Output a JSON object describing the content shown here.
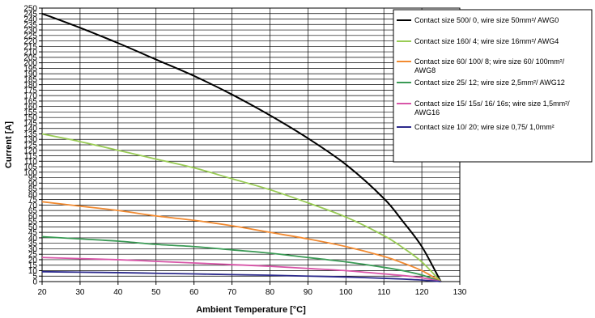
{
  "chart_data": {
    "type": "line",
    "xlabel": "Ambient Temperature [°C]",
    "ylabel": "Current [A]",
    "xlim": [
      20,
      130
    ],
    "ylim": [
      0,
      250
    ],
    "xticks": [
      20,
      30,
      40,
      50,
      60,
      70,
      80,
      90,
      100,
      110,
      120,
      130
    ],
    "yticks": [
      0,
      5,
      10,
      15,
      20,
      25,
      30,
      35,
      40,
      45,
      50,
      55,
      60,
      65,
      70,
      75,
      80,
      85,
      90,
      95,
      100,
      105,
      110,
      115,
      120,
      125,
      130,
      135,
      140,
      145,
      150,
      155,
      160,
      165,
      170,
      175,
      180,
      185,
      190,
      195,
      200,
      205,
      210,
      215,
      220,
      225,
      230,
      235,
      240,
      245,
      250
    ],
    "grid": true,
    "legend_position": "top-right",
    "series": [
      {
        "name": "Contact size 500/ 0, wire size 50mm²/ AWG0",
        "color": "#000000",
        "lines": [
          "Contact size 500/ 0, wire size 50mm²/ AWG0"
        ],
        "x": [
          20,
          30,
          40,
          50,
          60,
          70,
          80,
          90,
          100,
          110,
          115,
          120,
          125
        ],
        "y": [
          245,
          232,
          218,
          203,
          188,
          171,
          152,
          131,
          107,
          76,
          55,
          32,
          0
        ]
      },
      {
        "name": "Contact size 160/ 4; wire size 16mm²/ AWG4",
        "color": "#99cc55",
        "lines": [
          "Contact size 160/ 4; wire size 16mm²/ AWG4"
        ],
        "x": [
          20,
          30,
          40,
          50,
          60,
          70,
          80,
          90,
          100,
          110,
          115,
          120,
          125
        ],
        "y": [
          135,
          128,
          120,
          112,
          104,
          94,
          84,
          72,
          59,
          42,
          31,
          18,
          0
        ]
      },
      {
        "name": "Contact size 60/ 100/ 8; wire size 60/ 100mm²/ AWG8",
        "color": "#f28a30",
        "lines": [
          "Contact size 60/ 100/ 8; wire size 60/ 100mm²/",
          "AWG8"
        ],
        "x": [
          20,
          30,
          40,
          50,
          60,
          70,
          80,
          90,
          100,
          110,
          115,
          120,
          125
        ],
        "y": [
          73,
          69,
          65,
          60,
          56,
          51,
          45,
          39,
          32,
          23,
          17,
          10,
          0
        ]
      },
      {
        "name": "Contact size 25/ 12; wire size 2,5mm²/ AWG12",
        "color": "#3a9a55",
        "lines": [
          "Contact size 25/ 12; wire size 2,5mm²/ AWG12"
        ],
        "x": [
          20,
          30,
          40,
          50,
          60,
          70,
          80,
          90,
          100,
          110,
          115,
          120,
          125
        ],
        "y": [
          41,
          39,
          37,
          34,
          32,
          29,
          26,
          22,
          18,
          13,
          10,
          6,
          0
        ]
      },
      {
        "name": "Contact size 15/ 15s/ 16/ 16s; wire size 1,5mm²/ AWG16",
        "color": "#d855a8",
        "lines": [
          "Contact size 15/ 15s/ 16/ 16s; wire size 1,5mm²/",
          "AWG16"
        ],
        "x": [
          20,
          30,
          40,
          50,
          60,
          70,
          80,
          90,
          100,
          110,
          115,
          120,
          125
        ],
        "y": [
          22,
          21,
          20,
          18.5,
          17,
          15.5,
          14,
          12,
          10,
          7,
          5.5,
          3.5,
          0
        ]
      },
      {
        "name": "Contact size 10/ 20; wire size 0,75/ 1,0mm²",
        "color": "#2c2a8c",
        "lines": [
          "Contact size 10/ 20; wire size 0,75/ 1,0mm²"
        ],
        "x": [
          20,
          30,
          40,
          50,
          60,
          70,
          80,
          90,
          100,
          110,
          115,
          120,
          125
        ],
        "y": [
          9,
          8.6,
          8.2,
          7.6,
          7,
          6.4,
          5.8,
          5,
          4.2,
          3,
          2.3,
          1.4,
          0
        ]
      }
    ]
  }
}
